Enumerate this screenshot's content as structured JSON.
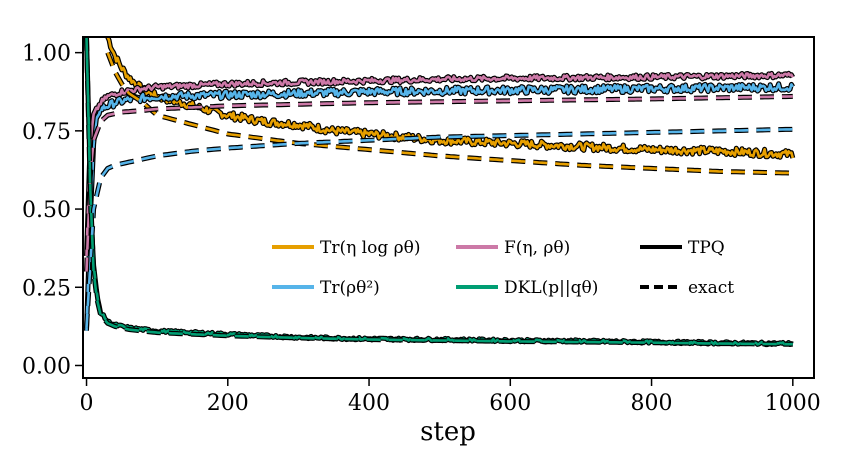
{
  "chart_data": {
    "type": "line",
    "title": "",
    "xlabel": "step",
    "ylabel": "",
    "xlim": [
      -5,
      1030
    ],
    "ylim": [
      -0.04,
      1.05
    ],
    "xticks": [
      0,
      200,
      400,
      600,
      800,
      1000
    ],
    "yticks": [
      0.0,
      0.25,
      0.5,
      0.75,
      1.0
    ],
    "xtick_labels": [
      "0",
      "200",
      "400",
      "600",
      "800",
      "1000"
    ],
    "ytick_labels": [
      "0.00",
      "0.25",
      "0.50",
      "0.75",
      "1.00"
    ],
    "grid": false,
    "legend_position": "center-right",
    "legend": {
      "entries": [
        {
          "label": "Tr(η log ρθ)",
          "color": "#E69F00",
          "style": "solid"
        },
        {
          "label": "Tr(ρθ²)",
          "color": "#56B4E9",
          "style": "solid"
        },
        {
          "label": "F(η, ρθ)",
          "color": "#CC79A7",
          "style": "solid"
        },
        {
          "label": "DKL(p||qθ)",
          "color": "#009E73",
          "style": "solid"
        },
        {
          "label": "TPQ",
          "color": "#000000",
          "style": "solid"
        },
        {
          "label": "exact",
          "color": "#000000",
          "style": "dashed"
        }
      ]
    },
    "series": [
      {
        "name": "Tr(η log ρθ)",
        "method": "TPQ",
        "color": "#E69F00",
        "x": [
          30,
          40,
          50,
          60,
          70,
          80,
          100,
          150,
          200,
          250,
          300,
          350,
          400,
          450,
          500,
          600,
          700,
          800,
          900,
          1000
        ],
        "y": [
          1.05,
          0.99,
          0.95,
          0.92,
          0.9,
          0.88,
          0.86,
          0.83,
          0.8,
          0.78,
          0.77,
          0.75,
          0.74,
          0.73,
          0.72,
          0.71,
          0.7,
          0.69,
          0.685,
          0.675
        ],
        "noise": 0.012
      },
      {
        "name": "Tr(η log ρθ)",
        "method": "exact",
        "color": "#E69F00",
        "x": [
          30,
          40,
          50,
          60,
          80,
          100,
          150,
          200,
          300,
          400,
          500,
          600,
          700,
          800,
          900,
          1000
        ],
        "y": [
          1.0,
          0.94,
          0.9,
          0.87,
          0.84,
          0.8,
          0.77,
          0.74,
          0.71,
          0.69,
          0.67,
          0.655,
          0.64,
          0.63,
          0.62,
          0.615
        ],
        "noise": 0
      },
      {
        "name": "Tr(ρθ²)",
        "method": "TPQ",
        "color": "#56B4E9",
        "x": [
          0,
          5,
          10,
          15,
          20,
          30,
          40,
          60,
          80,
          100,
          200,
          300,
          400,
          600,
          800,
          1000
        ],
        "y": [
          0.12,
          0.45,
          0.7,
          0.8,
          0.82,
          0.83,
          0.84,
          0.85,
          0.855,
          0.86,
          0.865,
          0.87,
          0.875,
          0.88,
          0.885,
          0.89
        ],
        "noise": 0.012
      },
      {
        "name": "Tr(ρθ²)",
        "method": "exact",
        "color": "#56B4E9",
        "x": [
          0,
          10,
          20,
          30,
          40,
          60,
          100,
          150,
          200,
          300,
          400,
          500,
          600,
          700,
          800,
          900,
          1000
        ],
        "y": [
          0.12,
          0.5,
          0.6,
          0.63,
          0.64,
          0.65,
          0.67,
          0.685,
          0.695,
          0.71,
          0.72,
          0.73,
          0.735,
          0.74,
          0.745,
          0.75,
          0.755
        ],
        "noise": 0
      },
      {
        "name": "F(η, ρθ)",
        "method": "TPQ",
        "color": "#CC79A7",
        "x": [
          0,
          5,
          10,
          20,
          30,
          50,
          80,
          100,
          200,
          300,
          400,
          500,
          600,
          700,
          800,
          900,
          1000
        ],
        "y": [
          0.35,
          0.7,
          0.8,
          0.84,
          0.86,
          0.875,
          0.885,
          0.89,
          0.9,
          0.905,
          0.91,
          0.915,
          0.918,
          0.92,
          0.922,
          0.925,
          0.928
        ],
        "noise": 0.008
      },
      {
        "name": "F(η, ρθ)",
        "method": "exact",
        "color": "#CC79A7",
        "x": [
          0,
          5,
          10,
          20,
          30,
          50,
          80,
          100,
          200,
          300,
          400,
          500,
          600,
          700,
          800,
          900,
          1000
        ],
        "y": [
          0.3,
          0.6,
          0.72,
          0.78,
          0.8,
          0.81,
          0.815,
          0.82,
          0.83,
          0.835,
          0.84,
          0.843,
          0.846,
          0.849,
          0.852,
          0.856,
          0.86
        ],
        "noise": 0
      },
      {
        "name": "DKL(p||qθ)",
        "method": "TPQ",
        "color": "#009E73",
        "x": [
          0,
          3,
          6,
          10,
          15,
          20,
          30,
          40,
          60,
          80,
          100,
          150,
          200,
          300,
          400,
          500,
          600,
          700,
          800,
          900,
          1000
        ],
        "y": [
          1.05,
          0.8,
          0.5,
          0.32,
          0.22,
          0.17,
          0.14,
          0.13,
          0.12,
          0.115,
          0.11,
          0.105,
          0.1,
          0.09,
          0.085,
          0.083,
          0.08,
          0.078,
          0.075,
          0.072,
          0.07
        ],
        "noise": 0.004
      },
      {
        "name": "DKL(p||qθ)",
        "method": "exact",
        "color": "#009E73",
        "x": [
          0,
          3,
          6,
          10,
          15,
          20,
          30,
          40,
          60,
          80,
          100,
          150,
          200,
          300,
          400,
          500,
          600,
          700,
          800,
          900,
          1000
        ],
        "y": [
          1.05,
          0.78,
          0.48,
          0.3,
          0.21,
          0.16,
          0.135,
          0.125,
          0.115,
          0.11,
          0.105,
          0.1,
          0.095,
          0.088,
          0.083,
          0.08,
          0.077,
          0.075,
          0.073,
          0.07,
          0.068
        ],
        "noise": 0
      }
    ]
  }
}
